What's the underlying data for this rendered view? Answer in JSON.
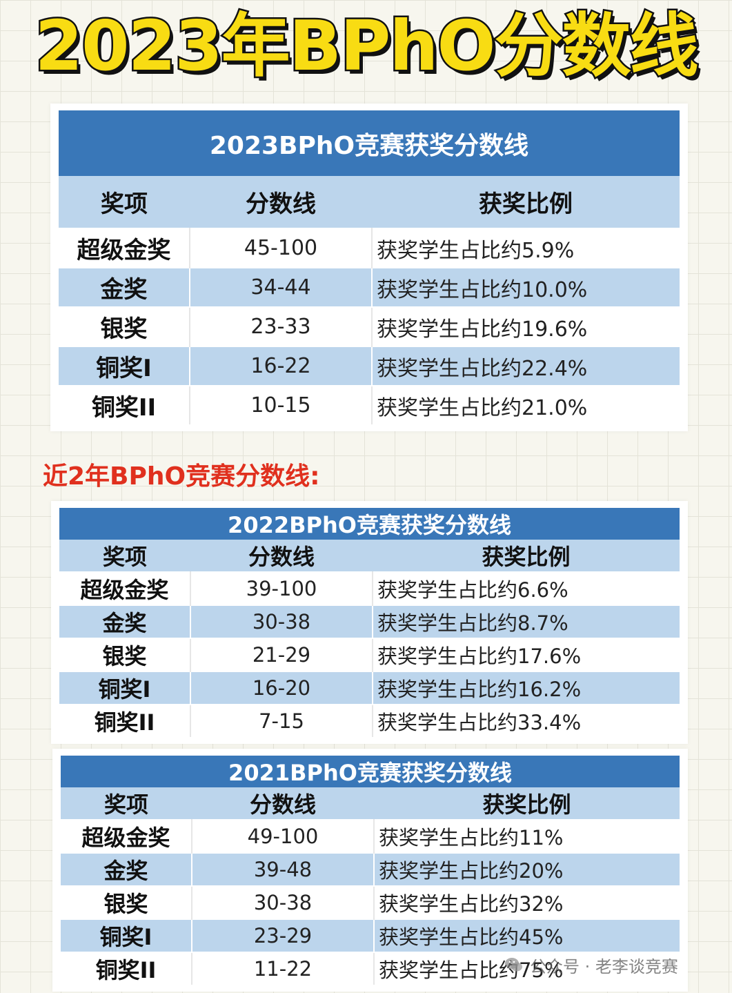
{
  "main_title": "2023年BPhO分数线",
  "section_label": "近2年BPhO竞赛分数线:",
  "tables": [
    {
      "title": "2023BPhO竞赛获奖分数线",
      "headers": [
        "奖项",
        "分数线",
        "获奖比例"
      ],
      "rows": [
        [
          "超级金奖",
          "45-100",
          "获奖学生占比约5.9%"
        ],
        [
          "金奖",
          "34-44",
          "获奖学生占比约10.0%"
        ],
        [
          "银奖",
          "23-33",
          "获奖学生占比约19.6%"
        ],
        [
          "铜奖I",
          "16-22",
          "获奖学生占比约22.4%"
        ],
        [
          "铜奖II",
          "10-15",
          "获奖学生占比约21.0%"
        ]
      ]
    },
    {
      "title": "2022BPhO竞赛获奖分数线",
      "headers": [
        "奖项",
        "分数线",
        "获奖比例"
      ],
      "rows": [
        [
          "超级金奖",
          "39-100",
          "获奖学生占比约6.6%"
        ],
        [
          "金奖",
          "30-38",
          "获奖学生占比约8.7%"
        ],
        [
          "银奖",
          "21-29",
          "获奖学生占比约17.6%"
        ],
        [
          "铜奖I",
          "16-20",
          "获奖学生占比约16.2%"
        ],
        [
          "铜奖II",
          "7-15",
          "获奖学生占比约33.4%"
        ]
      ]
    },
    {
      "title": "2021BPhO竞赛获奖分数线",
      "headers": [
        "奖项",
        "分数线",
        "获奖比例"
      ],
      "rows": [
        [
          "超级金奖",
          "49-100",
          "获奖学生占比约11%"
        ],
        [
          "金奖",
          "39-48",
          "获奖学生占比约20%"
        ],
        [
          "银奖",
          "30-38",
          "获奖学生占比约32%"
        ],
        [
          "铜奖I",
          "23-29",
          "获奖学生占比约45%"
        ],
        [
          "铜奖II",
          "11-22",
          "获奖学生占比约75%"
        ]
      ]
    }
  ],
  "watermark": "公众号 · 老李谈竞赛",
  "colors": {
    "title_fill": "#f8dc13",
    "table_header_blue": "#3977b8",
    "row_light_blue": "#bcd5ec",
    "section_red": "#e0301e"
  },
  "icons": {
    "watermark": "wechat-icon"
  }
}
